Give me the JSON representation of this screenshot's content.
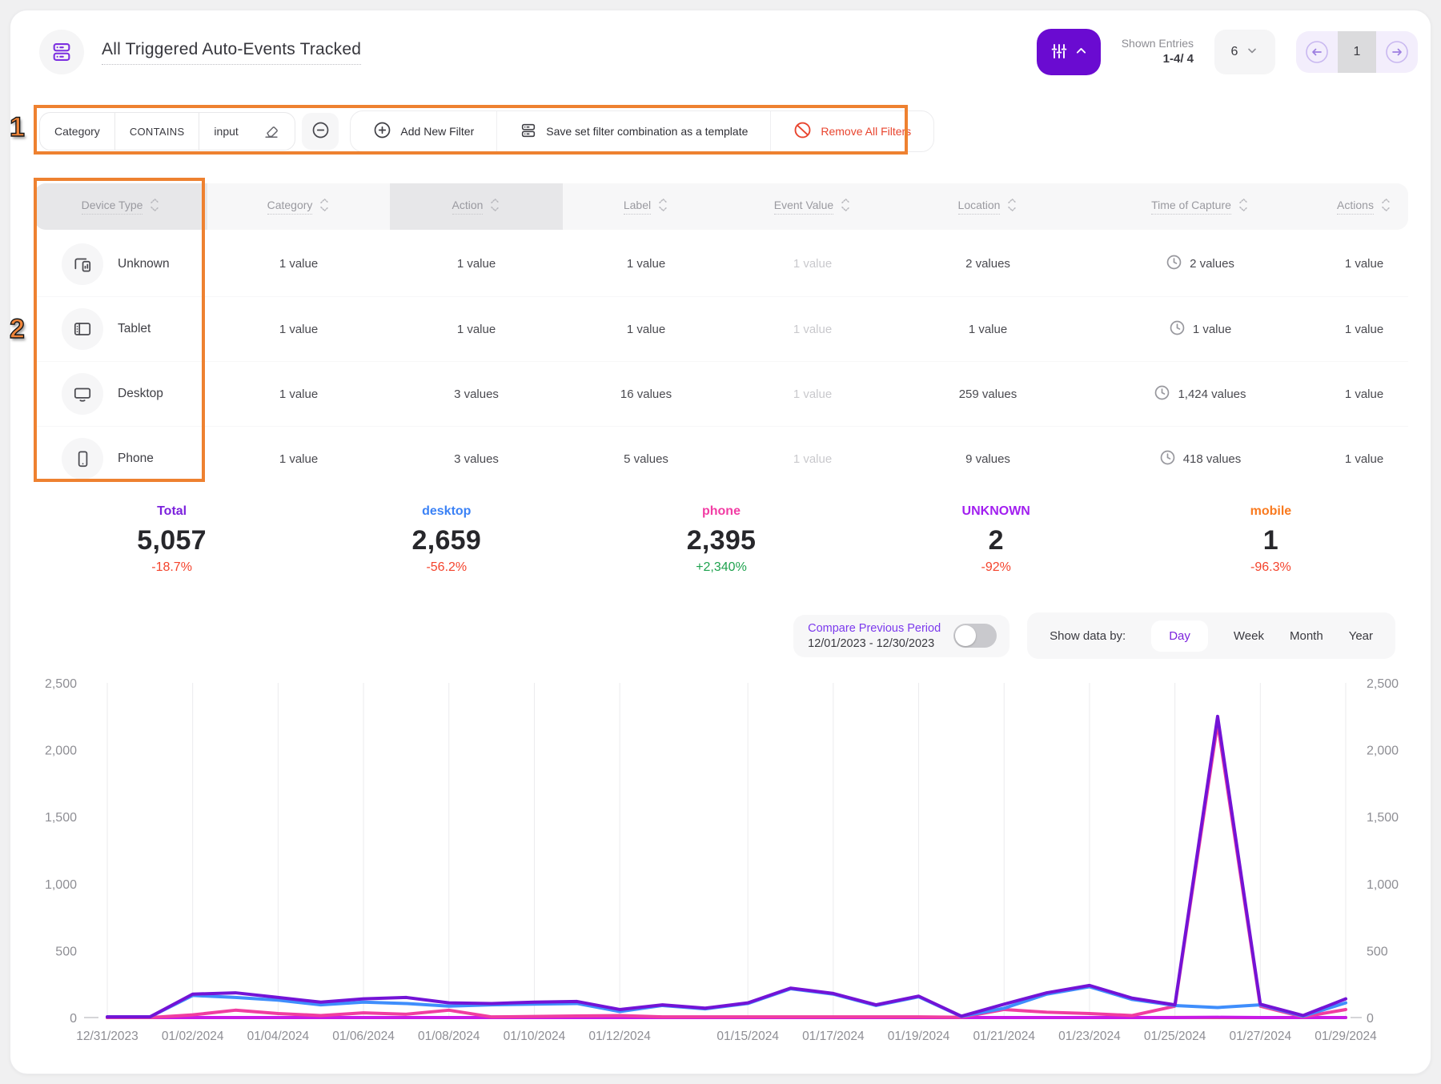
{
  "theme": {
    "primary": "#6a0bd1",
    "annotation_orange": "#ee8130",
    "danger": "#e8442e"
  },
  "icons": {
    "title": "database-icon",
    "filter_button": "sliders-icon chevron-up-icon",
    "page_size": "chevron-down-icon",
    "pagination": "arrow-left-icon arrow-right-icon",
    "filter_value": "eraser-icon",
    "remove_filter": "minus-circle-icon",
    "add_filter": "plus-circle-icon",
    "save_template": "database-icon",
    "remove_all": "no-entry-icon",
    "sort": "sort-arrows-icon",
    "time_of_capture": "clock-icon",
    "devices": [
      "devices-icon",
      "tablet-icon",
      "monitor-icon",
      "smartphone-icon"
    ]
  },
  "header": {
    "title": "All Triggered Auto-Events Tracked",
    "shown_entries_label": "Shown Entries",
    "shown_entries_value": "1-4/ 4",
    "page_size": "6",
    "current_page": "1"
  },
  "filter_bar": {
    "field": "Category",
    "operator": "CONTAINS",
    "value": "input",
    "add_new_filter": "Add New Filter",
    "save_template": "Save set filter combination as a template",
    "remove_all": "Remove All Filters"
  },
  "annotations": {
    "label1": "1",
    "label2": "2"
  },
  "table": {
    "columns": [
      "Device Type",
      "Category",
      "Action",
      "Label",
      "Event Value",
      "Location",
      "Time of Capture",
      "Actions"
    ],
    "rows": [
      {
        "device": "Unknown",
        "category": "1 value",
        "action": "1 value",
        "label": "1 value",
        "event_value": "1 value",
        "location": "2 values",
        "time_of_capture": "2 values",
        "actions": "1 value"
      },
      {
        "device": "Tablet",
        "category": "1 value",
        "action": "1 value",
        "label": "1 value",
        "event_value": "1 value",
        "location": "1 value",
        "time_of_capture": "1 value",
        "actions": "1 value"
      },
      {
        "device": "Desktop",
        "category": "1 value",
        "action": "3 values",
        "label": "16 values",
        "event_value": "1 value",
        "location": "259 values",
        "time_of_capture": "1,424 values",
        "actions": "1 value"
      },
      {
        "device": "Phone",
        "category": "1 value",
        "action": "3 values",
        "label": "5 values",
        "event_value": "1 value",
        "location": "9 values",
        "time_of_capture": "418 values",
        "actions": "1 value"
      }
    ]
  },
  "stats": [
    {
      "label": "Total",
      "value": "5,057",
      "change": "-18.7%",
      "color": "#7c22dd",
      "change_color": "#f4432c"
    },
    {
      "label": "desktop",
      "value": "2,659",
      "change": "-56.2%",
      "color": "#3b82f6",
      "change_color": "#f4432c"
    },
    {
      "label": "phone",
      "value": "2,395",
      "change": "+2,340%",
      "color": "#f23da4",
      "change_color": "#1ea24e"
    },
    {
      "label": "UNKNOWN",
      "value": "2",
      "change": "-92%",
      "color": "#a21ff0",
      "change_color": "#f4432c"
    },
    {
      "label": "mobile",
      "value": "1",
      "change": "-96.3%",
      "color": "#f97a1f",
      "change_color": "#f4432c"
    }
  ],
  "chart_controls": {
    "compare_label": "Compare Previous Period",
    "compare_range": "12/01/2023 - 12/30/2023",
    "toggle_state": "off",
    "show_data_by": "Show data by:",
    "options": [
      "Day",
      "Week",
      "Month",
      "Year"
    ],
    "selected": "Day"
  },
  "chart_data": {
    "type": "line",
    "title": "",
    "xlabel": "",
    "ylabel": "",
    "ylim": [
      0,
      2500
    ],
    "grid": "vertical",
    "legend_position": "none",
    "y_ticks": [
      "2,500",
      "2,000",
      "1,500",
      "1,000",
      "500",
      "0"
    ],
    "x": [
      "12/31/2023",
      "01/01/2024",
      "01/02/2024",
      "01/03/2024",
      "01/04/2024",
      "01/05/2024",
      "01/06/2024",
      "01/07/2024",
      "01/08/2024",
      "01/09/2024",
      "01/10/2024",
      "01/11/2024",
      "01/12/2024",
      "01/13/2024",
      "01/14/2024",
      "01/15/2024",
      "01/16/2024",
      "01/17/2024",
      "01/18/2024",
      "01/19/2024",
      "01/20/2024",
      "01/21/2024",
      "01/22/2024",
      "01/23/2024",
      "01/24/2024",
      "01/25/2024",
      "01/26/2024",
      "01/27/2024",
      "01/28/2024",
      "01/29/2024"
    ],
    "x_tick_labels": [
      "12/31/2023",
      "01/02/2024",
      "01/04/2024",
      "01/06/2024",
      "01/08/2024",
      "01/10/2024",
      "01/12/2024",
      "01/15/2024",
      "01/17/2024",
      "01/19/2024",
      "01/21/2024",
      "01/23/2024",
      "01/25/2024",
      "01/27/2024",
      "01/29/2024"
    ],
    "series": [
      {
        "name": "Total",
        "color": "#7313d6",
        "values": [
          5,
          5,
          175,
          185,
          150,
          115,
          140,
          150,
          110,
          105,
          115,
          120,
          60,
          95,
          70,
          110,
          220,
          180,
          95,
          160,
          10,
          100,
          185,
          240,
          145,
          95,
          2250,
          100,
          15,
          140
        ]
      },
      {
        "name": "desktop",
        "color": "#3f8efc",
        "values": [
          5,
          5,
          165,
          150,
          130,
          95,
          115,
          105,
          85,
          95,
          100,
          105,
          45,
          90,
          65,
          105,
          215,
          175,
          90,
          155,
          8,
          70,
          175,
          230,
          135,
          90,
          75,
          95,
          10,
          110
        ]
      },
      {
        "name": "phone",
        "color": "#f03da0",
        "values": [
          0,
          0,
          20,
          55,
          30,
          15,
          35,
          25,
          55,
          5,
          8,
          12,
          15,
          5,
          5,
          5,
          5,
          5,
          5,
          5,
          2,
          60,
          40,
          30,
          15,
          85,
          2200,
          85,
          5,
          60
        ]
      },
      {
        "name": "UNKNOWN",
        "color": "#c81ae8",
        "values": [
          0,
          0,
          0,
          0,
          0,
          0,
          0,
          0,
          0,
          0,
          0,
          0,
          0,
          0,
          0,
          0,
          0,
          0,
          0,
          0,
          0,
          0,
          0,
          0,
          0,
          0,
          2,
          0,
          0,
          0
        ]
      },
      {
        "name": "mobile",
        "color": "#fb8b24",
        "values": [
          0,
          0,
          0,
          0,
          0,
          0,
          0,
          0,
          0,
          0,
          0,
          0,
          0,
          0,
          0,
          0,
          0,
          0,
          0,
          0,
          0,
          0,
          0,
          0,
          0,
          1,
          0,
          0,
          0,
          0
        ]
      }
    ]
  }
}
